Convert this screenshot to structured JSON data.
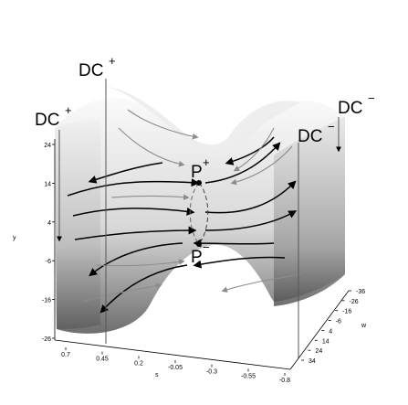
{
  "labels": {
    "dc_plus_upper": {
      "base": "DC",
      "sign": "+"
    },
    "dc_plus_left": {
      "base": "DC",
      "sign": "+"
    },
    "dc_minus_upper": {
      "base": "DC",
      "sign": "−"
    },
    "dc_minus_right": {
      "base": "DC",
      "sign": "−"
    },
    "p_plus": {
      "base": "P",
      "sign": "+"
    },
    "p_minus": {
      "base": "P",
      "sign": "−"
    }
  },
  "axes": {
    "y": {
      "name": "y",
      "ticks": [
        "24",
        "14",
        "4",
        "-6",
        "-16",
        "-26"
      ]
    },
    "s": {
      "name": "s",
      "ticks": [
        "0.7",
        "0.45",
        "0.2",
        "-0.05",
        "-0.3",
        "-0.55",
        "-0.8"
      ]
    },
    "w": {
      "name": "w",
      "ticks": [
        "-36",
        "-26",
        "-16",
        "-6",
        "4",
        "14",
        "24",
        "34"
      ]
    }
  },
  "colors": {
    "surface_light": "#f4f4f4",
    "surface_dark": "#7a7a7a",
    "flow_dark": "#000000",
    "flow_light": "#8c8c8c"
  }
}
